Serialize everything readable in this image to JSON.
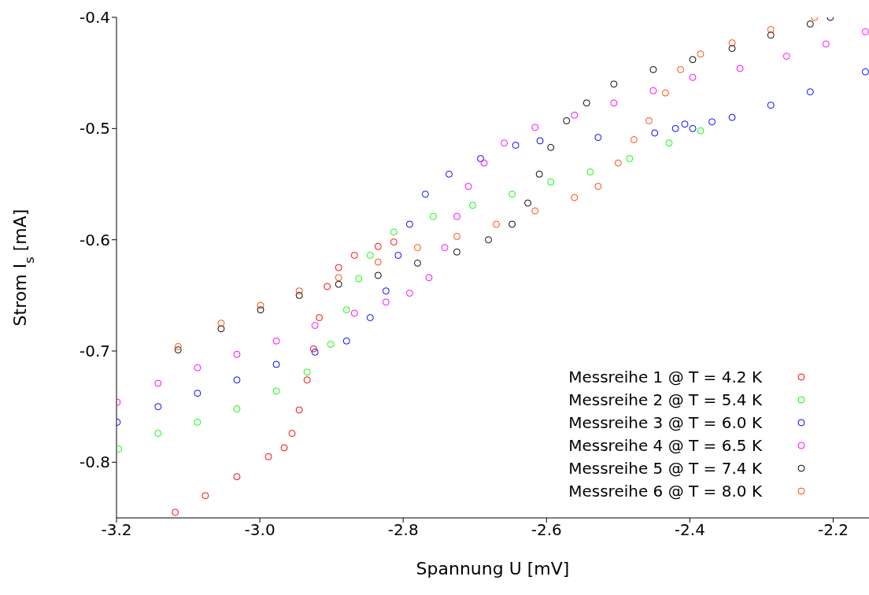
{
  "chart_data": {
    "type": "scatter",
    "xlabel": "Spannung U [mV]",
    "ylabel": "Strom I$_{s}$ [mA]",
    "xlim": [
      -3.2,
      -2.15
    ],
    "ylim": [
      -0.85,
      -0.4
    ],
    "xticks": [
      -3.2,
      {
        "value": -3,
        "label": "-3.0"
      },
      -2.8,
      -2.6,
      -2.4,
      -2.2
    ],
    "yticks": [
      -0.8,
      -0.7,
      -0.6,
      -0.5,
      -0.4
    ],
    "grid": false,
    "legend": "bottom right",
    "marker": "circle",
    "series": [
      {
        "name": "Messreihe 1 @ T = 4.2 K",
        "color": "#ff0000",
        "x": [
          -3.118,
          -3.076,
          -3.032,
          -2.988,
          -2.966,
          -2.955,
          -2.945,
          -2.934,
          -2.925,
          -2.917,
          -2.906,
          -2.89,
          -2.868,
          -2.835,
          -2.813
        ],
        "values": [
          -0.845,
          -0.83,
          -0.813,
          -0.795,
          -0.787,
          -0.774,
          -0.753,
          -0.726,
          -0.698,
          -0.67,
          -0.642,
          -0.625,
          -0.614,
          -0.606,
          -0.602
        ]
      },
      {
        "name": "Messreihe 2 @ T = 5.4 K",
        "color": "#00ff00",
        "x": [
          -3.197,
          -3.142,
          -3.087,
          -3.032,
          -2.977,
          -2.934,
          -2.901,
          -2.879,
          -2.862,
          -2.846,
          -2.813,
          -2.758,
          -2.703,
          -2.648,
          -2.594,
          -2.539,
          -2.484,
          -2.429,
          -2.385
        ],
        "values": [
          -0.788,
          -0.774,
          -0.764,
          -0.752,
          -0.736,
          -0.719,
          -0.694,
          -0.663,
          -0.635,
          -0.614,
          -0.593,
          -0.579,
          -0.569,
          -0.559,
          -0.548,
          -0.539,
          -0.527,
          -0.513,
          -0.502
        ]
      },
      {
        "name": "Messreihe 3 @ T = 6.0 K",
        "color": "#0000ff",
        "x": [
          -3.199,
          -3.142,
          -3.087,
          -3.032,
          -2.977,
          -2.923,
          -2.879,
          -2.846,
          -2.824,
          -2.807,
          -2.791,
          -2.769,
          -2.736,
          -2.692,
          -2.643,
          -2.609,
          -2.528,
          -2.449,
          -2.42,
          -2.407,
          -2.396,
          -2.369,
          -2.341,
          -2.287,
          -2.232,
          -2.155
        ],
        "values": [
          -0.764,
          -0.75,
          -0.738,
          -0.726,
          -0.712,
          -0.701,
          -0.691,
          -0.67,
          -0.646,
          -0.614,
          -0.586,
          -0.559,
          -0.541,
          -0.527,
          -0.515,
          -0.511,
          -0.508,
          -0.504,
          -0.5,
          -0.496,
          -0.5,
          -0.494,
          -0.49,
          -0.479,
          -0.467,
          -0.449
        ]
      },
      {
        "name": "Messreihe 4 @ T = 6.5 K",
        "color": "#ff00ff",
        "x": [
          -3.199,
          -3.142,
          -3.087,
          -3.032,
          -2.977,
          -2.923,
          -2.868,
          -2.824,
          -2.791,
          -2.764,
          -2.742,
          -2.725,
          -2.709,
          -2.687,
          -2.659,
          -2.616,
          -2.561,
          -2.506,
          -2.451,
          -2.396,
          -2.33,
          -2.265,
          -2.21,
          -2.155
        ],
        "values": [
          -0.746,
          -0.729,
          -0.715,
          -0.703,
          -0.691,
          -0.677,
          -0.666,
          -0.656,
          -0.648,
          -0.634,
          -0.607,
          -0.579,
          -0.552,
          -0.531,
          -0.513,
          -0.499,
          -0.488,
          -0.477,
          -0.466,
          -0.454,
          -0.446,
          -0.435,
          -0.424,
          -0.413
        ]
      },
      {
        "name": "Messreihe 5 @ T = 7.4 K",
        "color": "#000000",
        "x": [
          -3.114,
          -3.054,
          -2.999,
          -2.945,
          -2.89,
          -2.835,
          -2.78,
          -2.725,
          -2.681,
          -2.648,
          -2.626,
          -2.61,
          -2.594,
          -2.572,
          -2.544,
          -2.506,
          -2.451,
          -2.396,
          -2.341,
          -2.287,
          -2.232,
          -2.204
        ],
        "values": [
          -0.699,
          -0.68,
          -0.663,
          -0.65,
          -0.64,
          -0.632,
          -0.621,
          -0.611,
          -0.6,
          -0.586,
          -0.567,
          -0.541,
          -0.517,
          -0.493,
          -0.477,
          -0.46,
          -0.447,
          -0.438,
          -0.428,
          -0.416,
          -0.406,
          -0.4
        ]
      },
      {
        "name": "Messreihe 6 @ T = 8.0 K",
        "color": "#ff4500",
        "x": [
          -3.114,
          -3.054,
          -2.999,
          -2.945,
          -2.89,
          -2.835,
          -2.78,
          -2.725,
          -2.67,
          -2.616,
          -2.561,
          -2.528,
          -2.5,
          -2.478,
          -2.457,
          -2.434,
          -2.413,
          -2.385,
          -2.341,
          -2.287,
          -2.226
        ],
        "values": [
          -0.696,
          -0.675,
          -0.659,
          -0.646,
          -0.634,
          -0.62,
          -0.607,
          -0.597,
          -0.586,
          -0.574,
          -0.562,
          -0.552,
          -0.531,
          -0.51,
          -0.493,
          -0.468,
          -0.447,
          -0.433,
          -0.423,
          -0.411,
          -0.4
        ]
      }
    ]
  }
}
